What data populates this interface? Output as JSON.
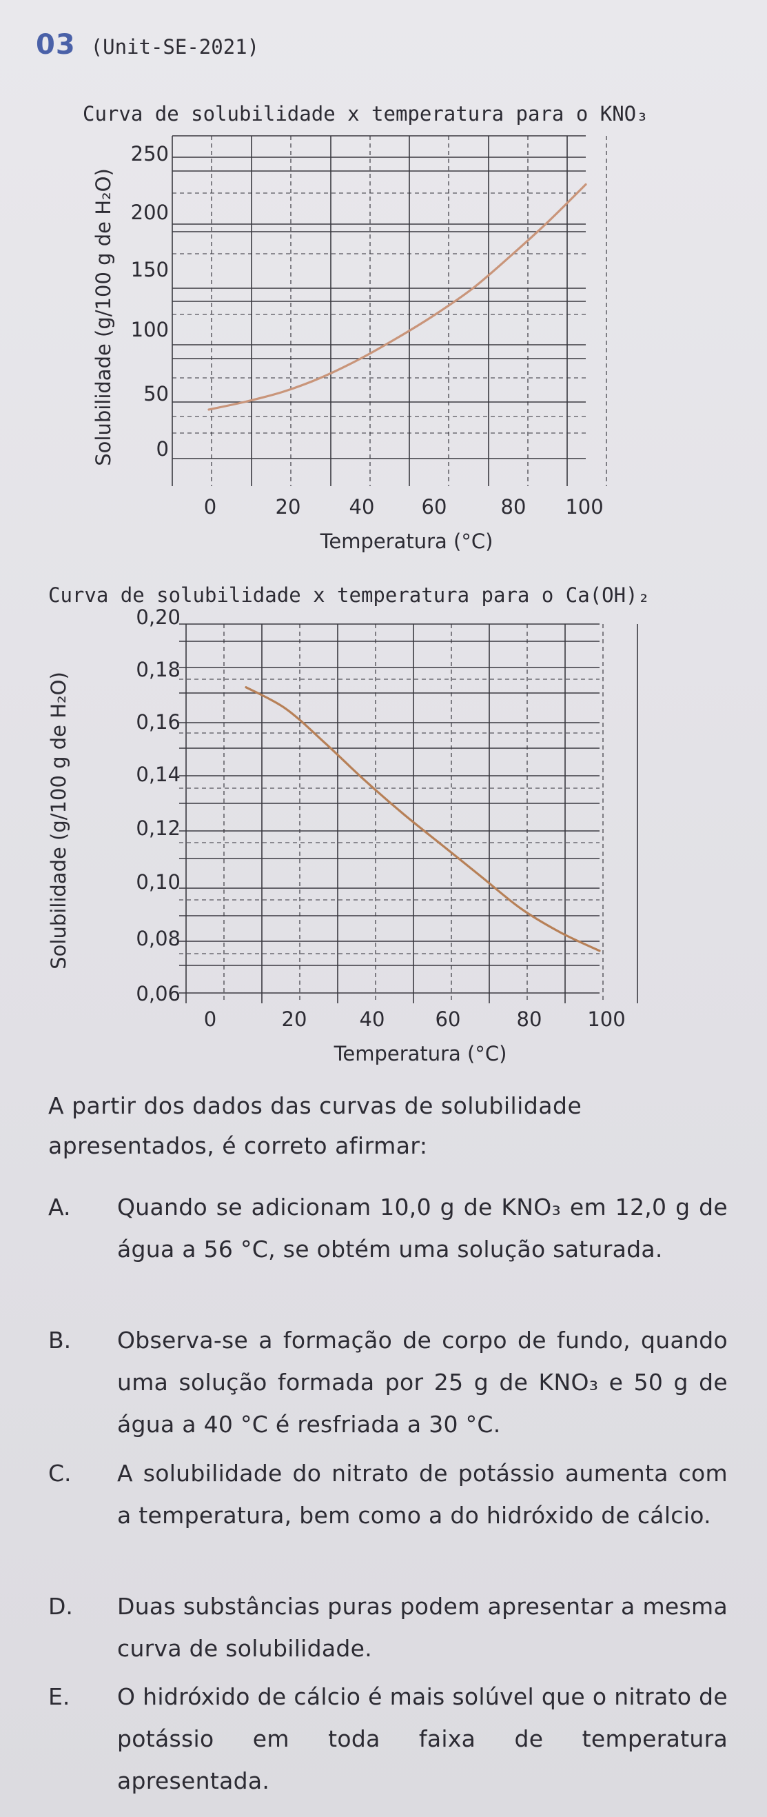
{
  "header": {
    "number": "03",
    "source": "(Unit-SE-2021)"
  },
  "chart_data": [
    {
      "type": "line",
      "title": "Curva de solubilidade x temperatura para o KNO₃",
      "xlabel": "Temperatura (°C)",
      "ylabel": "Solubilidade (g/100 g de H₂O)",
      "xlim": [
        0,
        100
      ],
      "ylim": [
        0,
        250
      ],
      "x_ticks": [
        "0",
        "20",
        "40",
        "60",
        "80",
        "100"
      ],
      "y_ticks": [
        "250",
        "200",
        "150",
        "100",
        "50",
        "0"
      ],
      "grid": true,
      "line_color": "#c9957a",
      "series": [
        {
          "x": [
            0,
            10,
            20,
            30,
            40,
            50,
            60,
            70,
            80,
            90,
            100
          ],
          "values": [
            13,
            21,
            31,
            45,
            63,
            84,
            107,
            133,
            165,
            199,
            236
          ]
        }
      ]
    },
    {
      "type": "line",
      "title": "Curva de solubilidade x temperatura para o Ca(OH)₂",
      "xlabel": "Temperatura (°C)",
      "ylabel": "Solubilidade (g/100 g de H₂O)",
      "xlim": [
        0,
        100
      ],
      "ylim": [
        0.06,
        0.2
      ],
      "x_ticks": [
        "0",
        "20",
        "40",
        "60",
        "80",
        "100"
      ],
      "y_ticks": [
        "0,20",
        "0,18",
        "0,16",
        "0,14",
        "0,12",
        "0,10",
        "0,08",
        "0,06"
      ],
      "grid": true,
      "line_color": "#b78057",
      "series": [
        {
          "x": [
            10,
            20,
            30,
            40,
            50,
            60,
            70,
            80,
            90,
            100
          ],
          "values": [
            0.176,
            0.168,
            0.155,
            0.141,
            0.128,
            0.116,
            0.104,
            0.092,
            0.083,
            0.076
          ]
        }
      ]
    }
  ],
  "question": {
    "stem": "A partir dos dados das curvas de solubilidade apresentados, é correto afirmar:",
    "options": [
      {
        "letter": "A.",
        "text": "Quando se adicionam 10,0 g de KNO₃ em 12,0 g de água a 56 °C, se obtém uma solução saturada."
      },
      {
        "letter": "B.",
        "text": "Observa-se a formação de corpo de fundo, quando uma solução formada por 25 g de KNO₃ e 50 g de água a 40 °C é resfriada a 30 °C."
      },
      {
        "letter": "C.",
        "text": "A solubilidade do nitrato de potássio aumenta com a temperatura, bem como a do hidróxido de cálcio."
      },
      {
        "letter": "D.",
        "text": "Duas substâncias puras podem apresentar a mesma curva de solubilidade."
      },
      {
        "letter": "E.",
        "text": "O hidróxido de cálcio é mais solúvel que o nitrato de potássio em toda faixa de temperatura apresentada."
      }
    ]
  }
}
